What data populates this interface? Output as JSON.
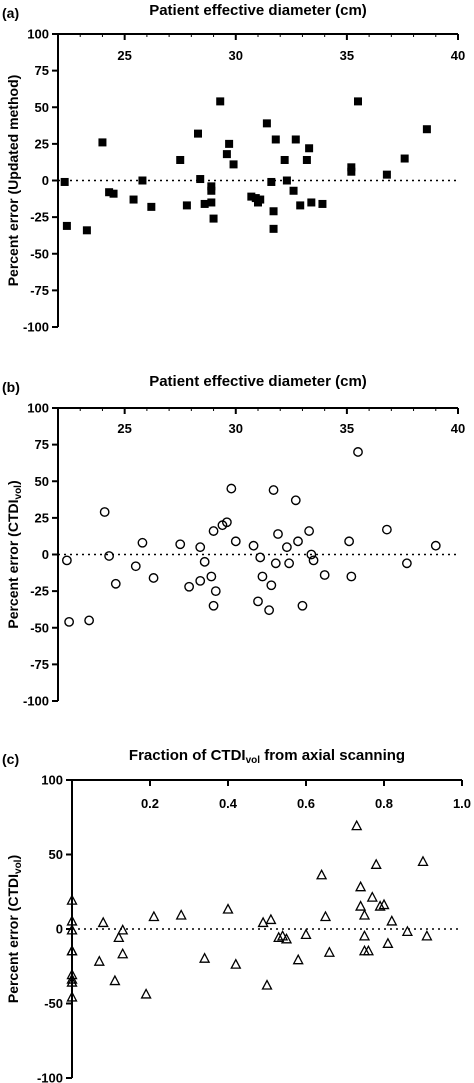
{
  "chart_data": [
    {
      "type": "scatter",
      "panel_label": "(a)",
      "title": "Patient effective diameter (cm)",
      "ylabel": {
        "main": "Percent error (Updated method)",
        "sub": ""
      },
      "xlim": [
        22,
        40
      ],
      "ylim": [
        -100,
        100
      ],
      "xticks": [
        "25",
        "30",
        "35",
        "40"
      ],
      "yticks": [
        "100",
        "75",
        "50",
        "25",
        "0",
        "-25",
        "-50",
        "-75",
        "-100"
      ],
      "x_axis_position": "top",
      "zero_line": "dotted",
      "marker": "square-filled",
      "series": [
        {
          "x": [
            22.3,
            22.4,
            23.3,
            24.0,
            24.3,
            24.5,
            25.4,
            25.8,
            26.2,
            27.5,
            27.8,
            28.3,
            28.4,
            28.6,
            28.9,
            28.9,
            28.9,
            29.0,
            29.3,
            29.6,
            29.7,
            29.9,
            30.7,
            30.9,
            31.0,
            31.1,
            31.4,
            31.6,
            31.7,
            31.7,
            31.8,
            32.2,
            32.3,
            32.6,
            32.7,
            32.9,
            33.2,
            33.3,
            33.4,
            33.9,
            35.2,
            35.2,
            35.5,
            36.8,
            37.6,
            38.6
          ],
          "y": [
            -1,
            -31,
            -34,
            26,
            -8,
            -9,
            -13,
            0,
            -18,
            14,
            -17,
            32,
            1,
            -16,
            -15,
            -4,
            -7,
            -26,
            54,
            18,
            25,
            11,
            -11,
            -12,
            -15,
            -13,
            39,
            -1,
            -21,
            -33,
            28,
            14,
            0,
            -7,
            28,
            -17,
            14,
            22,
            -15,
            -16,
            9,
            6,
            54,
            4,
            15,
            35
          ]
        }
      ]
    },
    {
      "type": "scatter",
      "panel_label": "(b)",
      "title": "Patient effective diameter (cm)",
      "ylabel": {
        "main": "Percent error (CTDI",
        "sub": "vol",
        "close": ")"
      },
      "xlim": [
        22,
        40
      ],
      "ylim": [
        -100,
        100
      ],
      "xticks": [
        "25",
        "30",
        "35",
        "40"
      ],
      "yticks": [
        "100",
        "75",
        "50",
        "25",
        "0",
        "-25",
        "-50",
        "-75",
        "-100"
      ],
      "x_axis_position": "top",
      "zero_line": "dotted",
      "marker": "circle-open",
      "series": [
        {
          "x": [
            22.4,
            22.5,
            23.4,
            24.1,
            24.3,
            24.6,
            25.5,
            25.8,
            26.3,
            27.5,
            27.9,
            28.4,
            28.4,
            28.6,
            28.9,
            29.0,
            29.0,
            29.1,
            29.4,
            29.6,
            29.8,
            30.0,
            30.8,
            31.0,
            31.1,
            31.2,
            31.5,
            31.6,
            31.7,
            31.8,
            31.9,
            32.3,
            32.4,
            32.7,
            32.8,
            33.0,
            33.3,
            33.4,
            33.5,
            34.0,
            35.1,
            35.2,
            35.5,
            36.8,
            37.7,
            39.0
          ],
          "y": [
            -4,
            -46,
            -45,
            29,
            -1,
            -20,
            -8,
            8,
            -16,
            7,
            -22,
            5,
            -18,
            -5,
            -15,
            16,
            -35,
            -25,
            20,
            22,
            45,
            9,
            6,
            -32,
            -2,
            -15,
            -38,
            -21,
            44,
            -6,
            14,
            5,
            -6,
            37,
            9,
            -35,
            16,
            0,
            -4,
            -14,
            9,
            -15,
            70,
            17,
            -6,
            6
          ]
        }
      ]
    },
    {
      "type": "scatter",
      "panel_label": "(c)",
      "title": "Fraction of CTDI",
      "title_sub": "vol",
      "title_rest": " from axial scanning",
      "ylabel": {
        "main": "Percent error (CTDI",
        "sub": "vol",
        "close": ")"
      },
      "xlim": [
        0,
        1
      ],
      "ylim": [
        -100,
        100
      ],
      "xticks": [
        "0.2",
        "0.4",
        "0.6",
        "0.8",
        "1.0"
      ],
      "yticks": [
        "100",
        "50",
        "0",
        "-50",
        "-100"
      ],
      "x_axis_position": "top",
      "zero_line": "dotted",
      "marker": "triangle-open",
      "series": [
        {
          "x": [
            0,
            0,
            0,
            0,
            0,
            0,
            0,
            0,
            0,
            0.07,
            0.08,
            0.11,
            0.12,
            0.13,
            0.13,
            0.19,
            0.21,
            0.28,
            0.34,
            0.4,
            0.42,
            0.49,
            0.5,
            0.51,
            0.53,
            0.54,
            0.55,
            0.58,
            0.6,
            0.64,
            0.65,
            0.66,
            0.73,
            0.74,
            0.74,
            0.75,
            0.75,
            0.75,
            0.76,
            0.77,
            0.78,
            0.79,
            0.8,
            0.81,
            0.82,
            0.86,
            0.9,
            0.91
          ],
          "y": [
            19,
            5,
            -1,
            -15,
            -15,
            -31,
            -34,
            -36,
            -46,
            -22,
            4,
            -35,
            -6,
            -1,
            -17,
            -44,
            8,
            9,
            -20,
            13,
            -24,
            4,
            -38,
            6,
            -6,
            -5,
            -7,
            -21,
            -4,
            36,
            8,
            -16,
            69,
            28,
            15,
            9,
            -5,
            -15,
            -15,
            21,
            43,
            15,
            16,
            -10,
            5,
            -2,
            45,
            -5
          ]
        }
      ]
    }
  ]
}
